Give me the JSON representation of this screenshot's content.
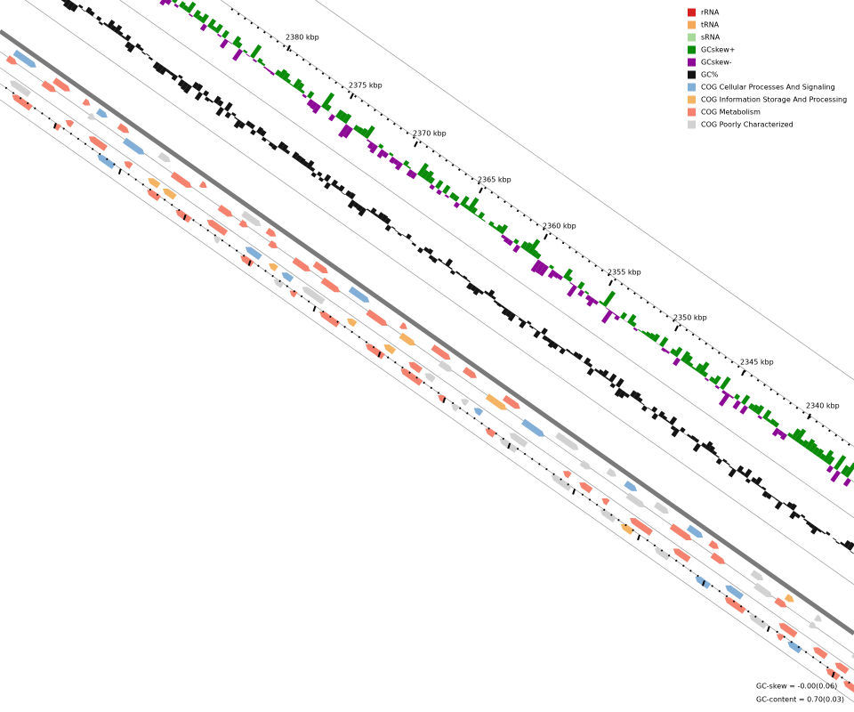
{
  "legend": [
    {
      "label": "rRNA",
      "color": "#d62020"
    },
    {
      "label": "tRNA",
      "color": "#f5a95a"
    },
    {
      "label": "sRNA",
      "color": "#a6d99a"
    },
    {
      "label": "GCskew+",
      "color": "#0a8c0a"
    },
    {
      "label": "GCskew-",
      "color": "#8c0a96"
    },
    {
      "label": "GC%",
      "color": "#141414"
    },
    {
      "label": "COG Cellular Processes And Signaling",
      "color": "#82afd7"
    },
    {
      "label": "COG Information Storage And Processing",
      "color": "#f5b464"
    },
    {
      "label": "COG Metabolism",
      "color": "#f5826e"
    },
    {
      "label": "COG Poorly Characterized",
      "color": "#d2d2d2"
    }
  ],
  "scale_labels": [
    "2380 kbp",
    "2375 kbp",
    "2370 kbp",
    "2365 kbp",
    "2360 kbp",
    "2355 kbp",
    "2350 kbp",
    "2345 kbp",
    "2340 kbp"
  ],
  "footer": [
    "GC-skew = -0.00(0.06)",
    "GC-content = 0.70(0.03)"
  ]
}
